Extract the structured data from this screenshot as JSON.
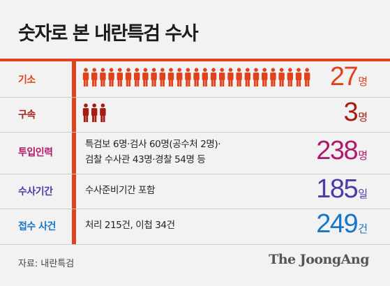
{
  "title": "숫자로 본 내란특검 수사",
  "colors": {
    "accent": "#e1411c",
    "indicted": "#e1411c",
    "arrested": "#a31d12",
    "staff": "#b0196c",
    "duration": "#4b3aa8",
    "cases": "#1677c8"
  },
  "chart_data": {
    "type": "table",
    "rows": [
      {
        "label": "기소",
        "value": 27,
        "unit": "명",
        "icon_count": 27,
        "icon": "person-icon"
      },
      {
        "label": "구속",
        "value": 3,
        "unit": "명",
        "icon_count": 3,
        "icon": "person-icon"
      },
      {
        "label": "투입인력",
        "value": 238,
        "unit": "명",
        "desc_line1": "특검보 6명·검사 60명(공수처 2명)·",
        "desc_line2": "검찰 수사관 43명·경찰 54명 등"
      },
      {
        "label": "수사기간",
        "value": 185,
        "unit": "일",
        "desc_line1": "수사준비기간 포함"
      },
      {
        "label": "접수 사건",
        "value": 249,
        "unit": "건",
        "desc_line1": "처리 215건, 이첩 34건"
      }
    ]
  },
  "source": "자료: 내란특검",
  "brand": "The JoongAng"
}
